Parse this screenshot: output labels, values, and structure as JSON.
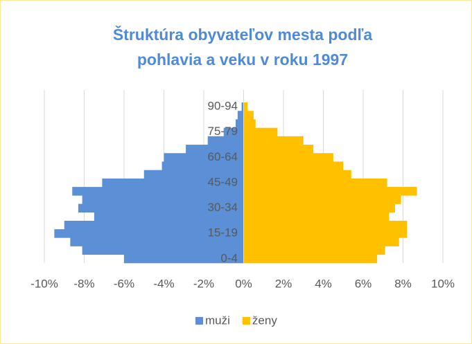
{
  "chart_data": {
    "type": "bar",
    "orientation": "horizontal",
    "title": [
      "Štruktúra obyvateľov mesta podľa",
      "pohlavia a veku v roku 1997"
    ],
    "categories": [
      "0-4",
      null,
      null,
      "15-19",
      null,
      null,
      "30-34",
      null,
      null,
      "45-49",
      null,
      null,
      "60-64",
      null,
      null,
      "75-79",
      null,
      null,
      "90-94"
    ],
    "series": [
      {
        "name": "muži",
        "color": "#5b8fd6",
        "values": [
          -6.0,
          -8.1,
          -8.7,
          -9.5,
          -9.0,
          -7.5,
          -8.3,
          -8.1,
          -8.6,
          -7.1,
          -5.0,
          -4.1,
          -4.0,
          -2.9,
          -1.8,
          -1.0,
          -0.4,
          -0.3,
          -0.1
        ]
      },
      {
        "name": "ženy",
        "color": "#ffc000",
        "values": [
          6.7,
          7.1,
          7.8,
          8.2,
          8.2,
          7.3,
          7.6,
          7.9,
          8.7,
          7.2,
          5.4,
          5.0,
          4.5,
          3.5,
          3.0,
          1.7,
          0.6,
          0.5,
          0.2
        ]
      }
    ],
    "xlim": [
      -10,
      10
    ],
    "xticks": [
      {
        "value": -10,
        "label": "-10%"
      },
      {
        "value": -8,
        "label": "-8%"
      },
      {
        "value": -6,
        "label": "-6%"
      },
      {
        "value": -4,
        "label": "-4%"
      },
      {
        "value": -2,
        "label": "-2%"
      },
      {
        "value": 0,
        "label": "0%"
      },
      {
        "value": 2,
        "label": "2%"
      },
      {
        "value": 4,
        "label": "4%"
      },
      {
        "value": 6,
        "label": "6%"
      },
      {
        "value": 8,
        "label": "8%"
      },
      {
        "value": 10,
        "label": "10%"
      }
    ],
    "grid": true,
    "legend": "bottom"
  }
}
